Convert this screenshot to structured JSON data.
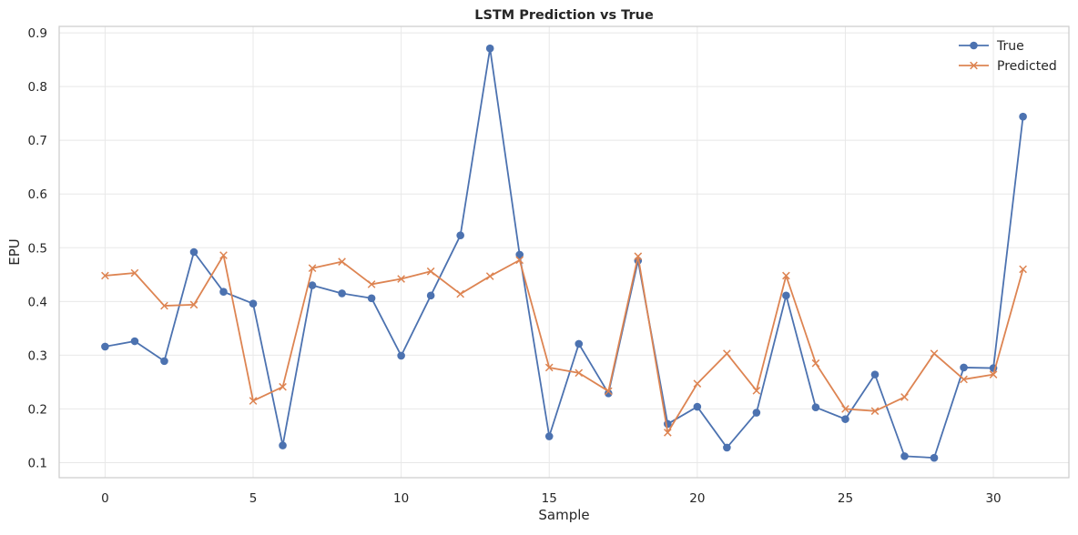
{
  "chart_data": {
    "type": "line",
    "title": "LSTM Prediction vs True",
    "xlabel": "Sample",
    "ylabel": "EPU",
    "xlim": [
      -1.55,
      32.55
    ],
    "ylim": [
      0.072,
      0.912
    ],
    "xticks": [
      0,
      5,
      10,
      15,
      20,
      25,
      30
    ],
    "yticks": [
      0.1,
      0.2,
      0.3,
      0.4,
      0.5,
      0.6,
      0.7,
      0.8,
      0.9
    ],
    "grid": true,
    "legend_position": "top-right",
    "x": [
      0,
      1,
      2,
      3,
      4,
      5,
      6,
      7,
      8,
      9,
      10,
      11,
      12,
      13,
      14,
      15,
      16,
      17,
      18,
      19,
      20,
      21,
      22,
      23,
      24,
      25,
      26,
      27,
      28,
      29,
      30,
      31
    ],
    "series": [
      {
        "name": "True",
        "color": "#4c72b0",
        "marker": "circle",
        "values": [
          0.316,
          0.326,
          0.289,
          0.492,
          0.418,
          0.396,
          0.132,
          0.43,
          0.415,
          0.406,
          0.299,
          0.411,
          0.523,
          0.871,
          0.487,
          0.149,
          0.321,
          0.229,
          0.476,
          0.172,
          0.204,
          0.128,
          0.193,
          0.411,
          0.203,
          0.181,
          0.264,
          0.112,
          0.109,
          0.277,
          0.276,
          0.744
        ]
      },
      {
        "name": "Predicted",
        "color": "#dd8452",
        "marker": "x",
        "values": [
          0.448,
          0.453,
          0.392,
          0.394,
          0.486,
          0.215,
          0.241,
          0.462,
          0.474,
          0.432,
          0.442,
          0.456,
          0.414,
          0.447,
          0.477,
          0.277,
          0.267,
          0.233,
          0.484,
          0.156,
          0.247,
          0.303,
          0.234,
          0.448,
          0.285,
          0.2,
          0.196,
          0.222,
          0.303,
          0.255,
          0.264,
          0.46
        ]
      }
    ]
  }
}
